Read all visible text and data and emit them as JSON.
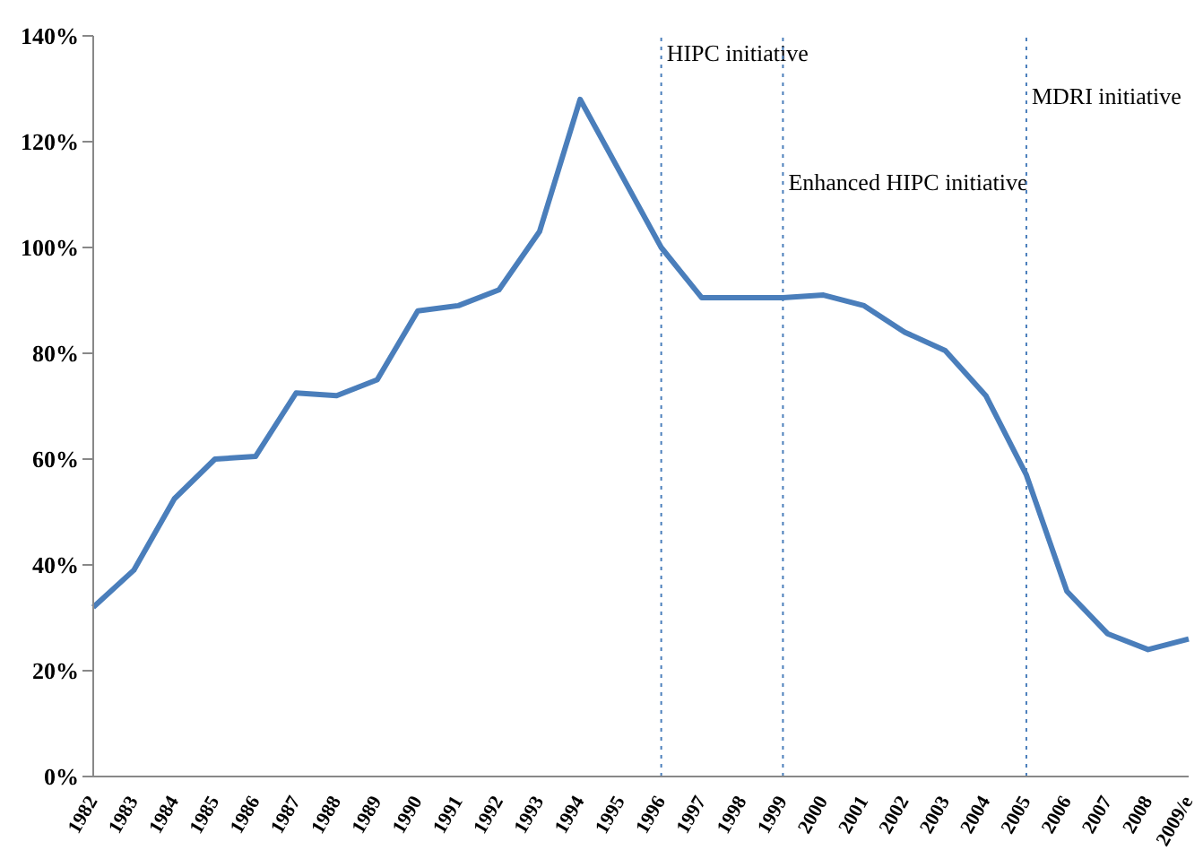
{
  "chart_data": {
    "type": "line",
    "categories": [
      "1982",
      "1983",
      "1984",
      "1985",
      "1986",
      "1987",
      "1988",
      "1989",
      "1990",
      "1991",
      "1992",
      "1993",
      "1994",
      "1995",
      "1996",
      "1997",
      "1998",
      "1999",
      "2000",
      "2001",
      "2002",
      "2003",
      "2004",
      "2005",
      "2006",
      "2007",
      "2008",
      "2009/e"
    ],
    "series": [
      {
        "color": "#4a7ebb",
        "values": [
          32,
          39,
          52.5,
          60,
          60.5,
          72.5,
          72,
          75,
          88,
          89,
          92,
          103,
          128,
          114,
          100,
          90.5,
          90.5,
          90.5,
          91,
          89,
          84,
          80.5,
          72,
          57,
          35,
          27,
          24,
          26
        ]
      }
    ],
    "ylim": [
      0,
      140
    ],
    "yticks": [
      {
        "value": 0,
        "label": "0%"
      },
      {
        "value": 20,
        "label": "20%"
      },
      {
        "value": 40,
        "label": "40%"
      },
      {
        "value": 60,
        "label": "60%"
      },
      {
        "value": 80,
        "label": "80%"
      },
      {
        "value": 100,
        "label": "100%"
      },
      {
        "value": 120,
        "label": "120%"
      },
      {
        "value": 140,
        "label": "140%"
      }
    ],
    "ref_lines": [
      {
        "axis": "x",
        "value": "1996",
        "label": "HIPC initiative",
        "color": "#4a7ebb",
        "line_style": "dotted"
      },
      {
        "axis": "x",
        "value": "1999",
        "label": "Enhanced HIPC initiative",
        "color": "#4a7ebb",
        "line_style": "dotted"
      },
      {
        "axis": "x",
        "value": "2005",
        "label": "MDRI initiative",
        "color": "#4a7ebb",
        "line_style": "dotted"
      }
    ],
    "grid": false,
    "legend": false,
    "marker": "none",
    "line_style": "solid"
  }
}
